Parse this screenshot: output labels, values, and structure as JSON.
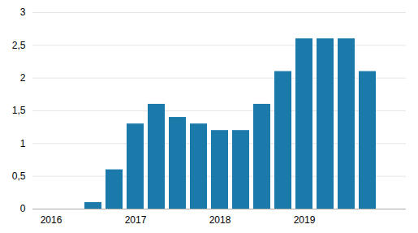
{
  "chart_data": {
    "type": "bar",
    "categories": [
      "2016",
      null,
      null,
      null,
      "2017",
      null,
      null,
      null,
      "2018",
      null,
      null,
      null,
      "2019",
      null,
      null,
      null,
      null
    ],
    "values": [
      null,
      null,
      0.1,
      0.6,
      1.3,
      1.6,
      1.4,
      1.3,
      1.2,
      1.2,
      1.6,
      2.1,
      2.6,
      2.6,
      2.6,
      2.1,
      null
    ],
    "color": "#1c7aaa",
    "ylim": [
      0,
      3
    ],
    "yticks": [
      0,
      {
        "value": 0.5,
        "label": "0,5"
      },
      1,
      {
        "value": 1.5,
        "label": "1,5"
      },
      2,
      {
        "value": 2.5,
        "label": "2,5"
      },
      3
    ],
    "grid": true
  }
}
